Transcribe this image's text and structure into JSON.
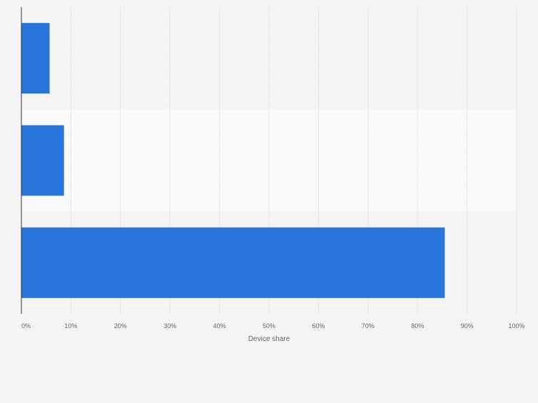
{
  "chart_data": {
    "type": "bar",
    "orientation": "horizontal",
    "categories": [
      "",
      "",
      ""
    ],
    "values": [
      5.7,
      8.6,
      85.5
    ],
    "xlabel": "Device share",
    "ylabel": "",
    "xlim": [
      0,
      100
    ],
    "ticks": [
      "0%",
      "10%",
      "20%",
      "30%",
      "40%",
      "50%",
      "60%",
      "70%",
      "80%",
      "90%",
      "100%"
    ],
    "grid": true,
    "legend": "none",
    "bar_color": "#2775dc",
    "band_colors": [
      "#f4f4f4",
      "#fafafa"
    ]
  }
}
